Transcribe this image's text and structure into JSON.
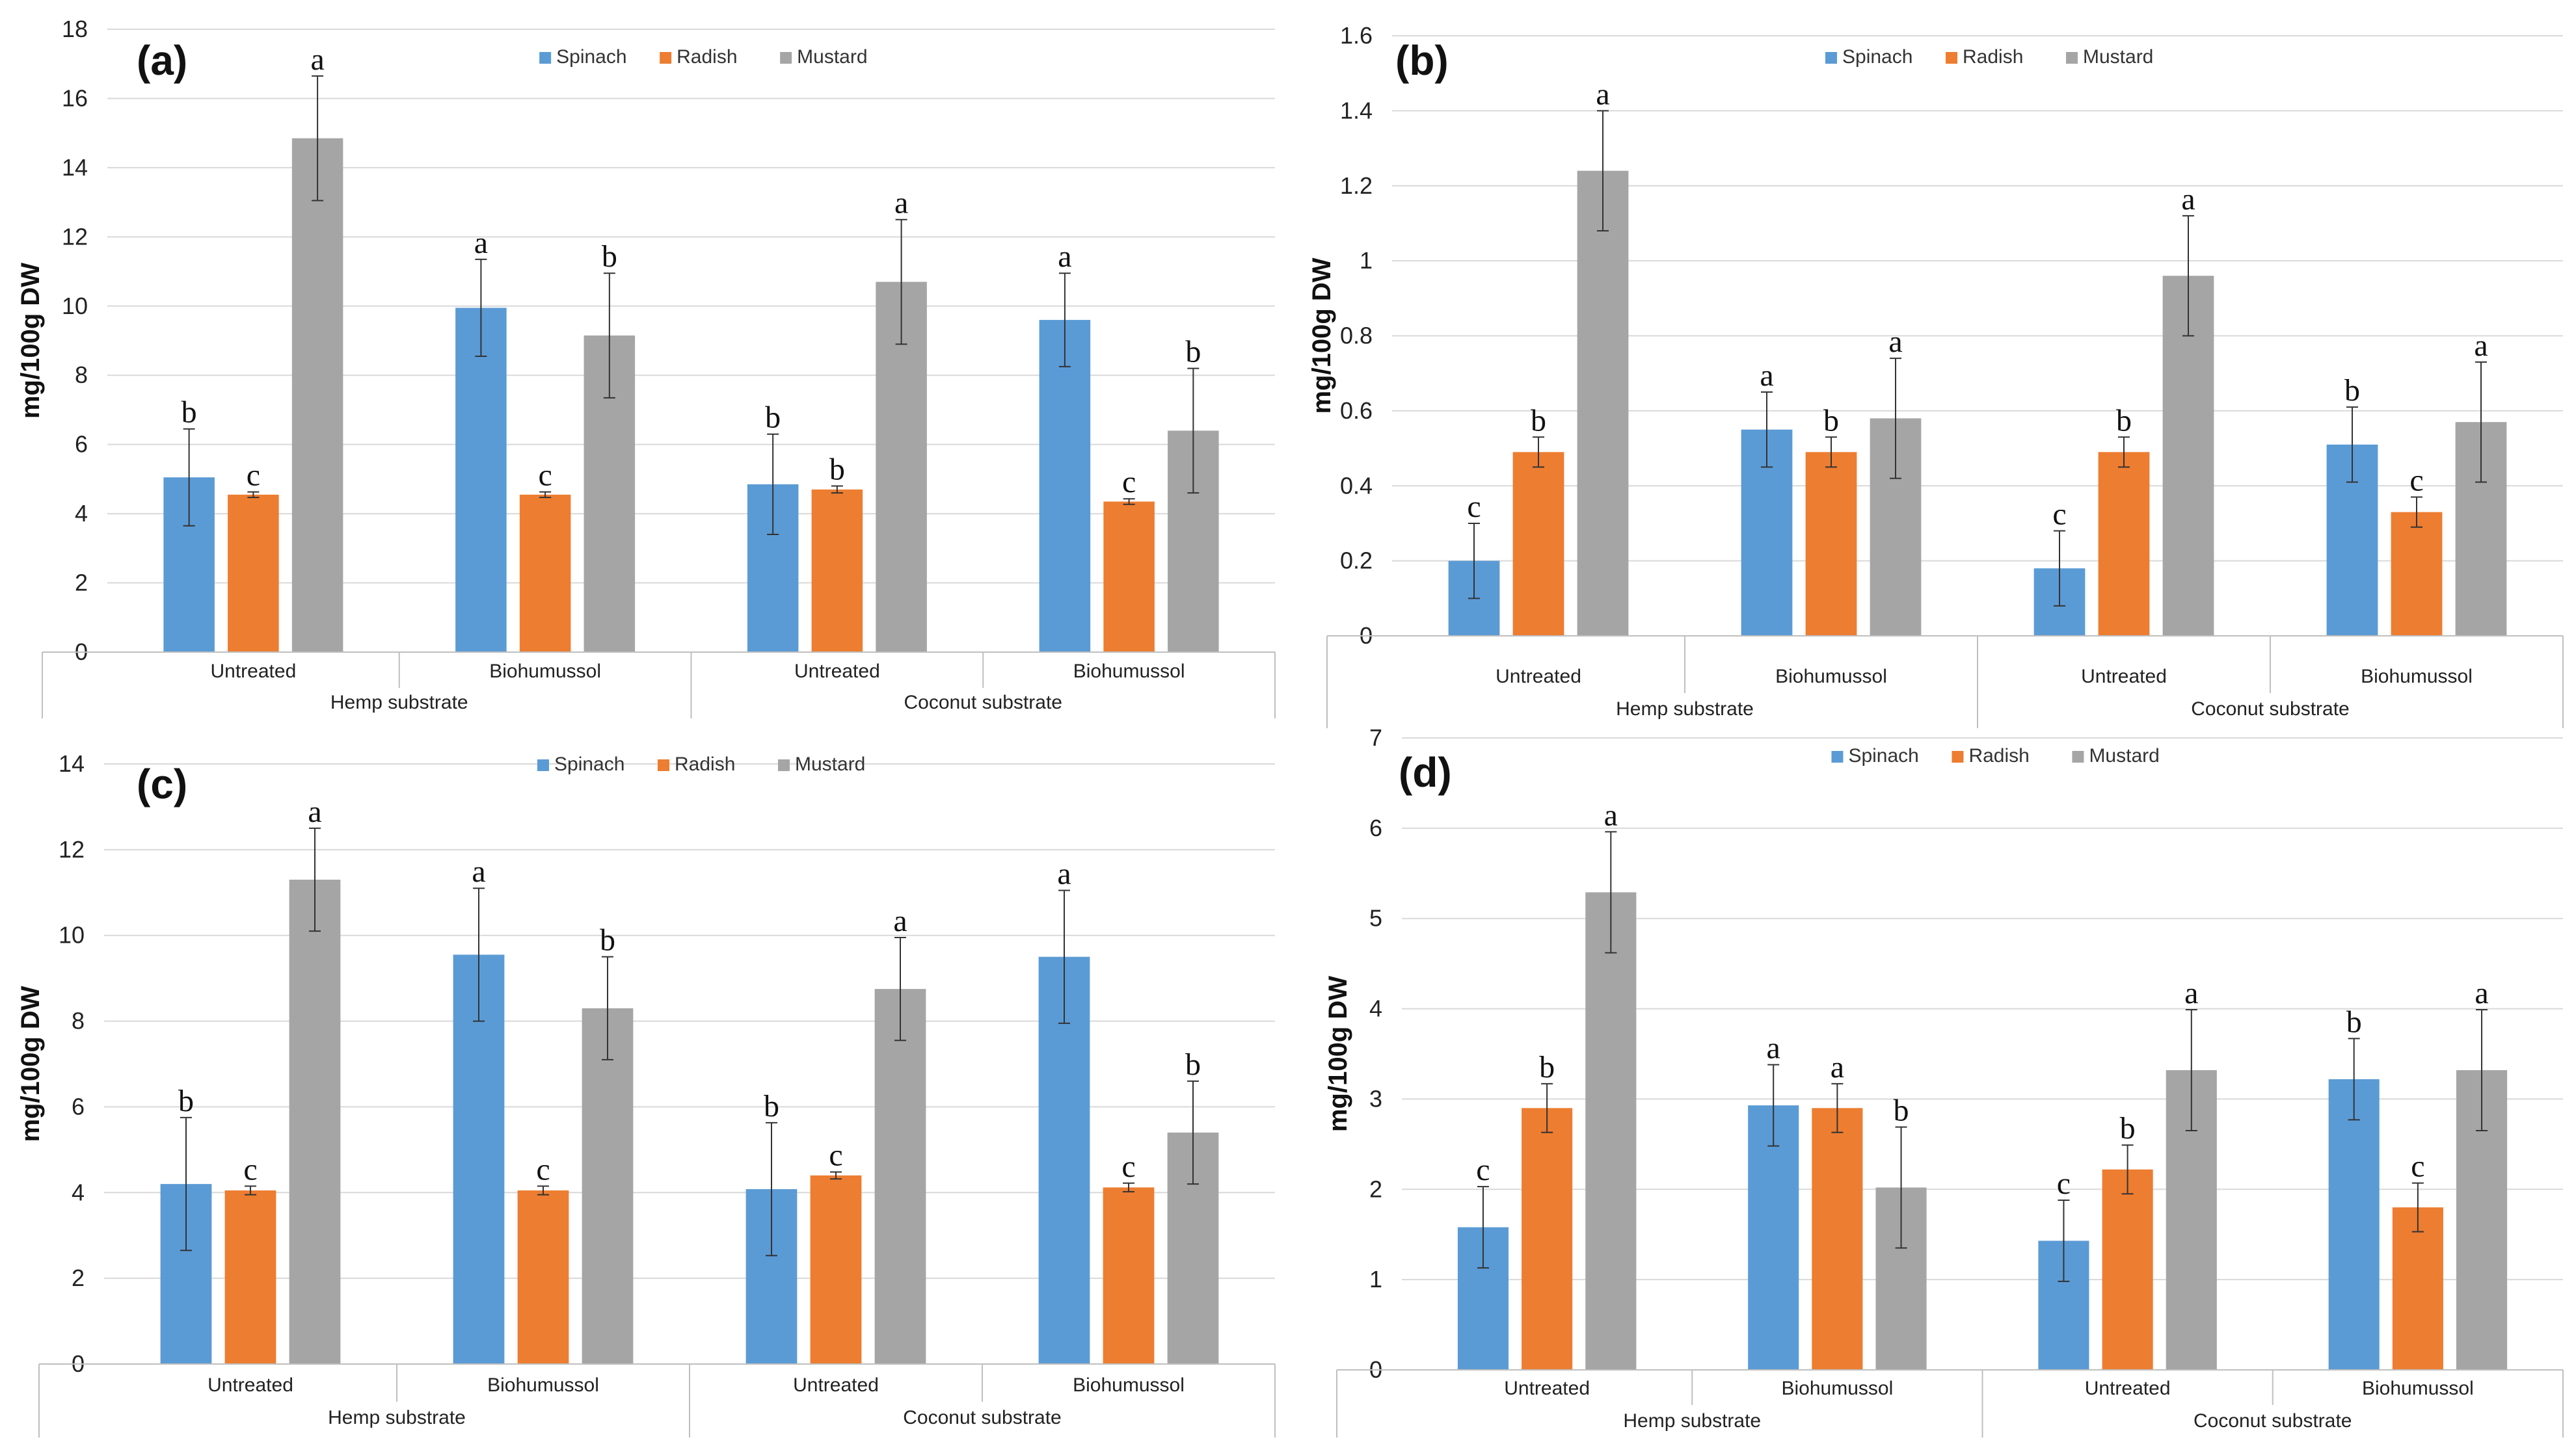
{
  "series_names": [
    "Spinach",
    "Radish",
    "Mustard"
  ],
  "colors": {
    "Spinach": "#5b9bd5",
    "Radish": "#ed7d31",
    "Mustard": "#a5a5a5",
    "error_bar": "#333333"
  },
  "chart_data": [
    {
      "type": "bar",
      "panel": "(a)",
      "ylabel": "mg/100g DW",
      "ylim": [
        0,
        18
      ],
      "yticks": [
        "0",
        "2",
        "4",
        "6",
        "8",
        "10",
        "12",
        "14",
        "16",
        "18"
      ],
      "groups": [
        {
          "outer": "Hemp substrate",
          "inner": [
            "Untreated",
            "Biohumussol"
          ]
        },
        {
          "outer": "Coconut substrate",
          "inner": [
            "Untreated",
            "Biohumussol"
          ]
        }
      ],
      "categories": [
        "Hemp substrate / Untreated",
        "Hemp substrate / Biohumussol",
        "Coconut substrate / Untreated",
        "Coconut substrate / Biohumussol"
      ],
      "series": [
        {
          "name": "Spinach",
          "values": [
            5.05,
            9.95,
            4.85,
            9.6
          ],
          "errors": [
            1.4,
            1.4,
            1.45,
            1.35
          ],
          "letters": [
            "b",
            "a",
            "b",
            "a"
          ]
        },
        {
          "name": "Radish",
          "values": [
            4.55,
            4.55,
            4.7,
            4.35
          ],
          "errors": [
            0.08,
            0.08,
            0.1,
            0.08
          ],
          "letters": [
            "c",
            "c",
            "b",
            "c"
          ]
        },
        {
          "name": "Mustard",
          "values": [
            14.85,
            9.15,
            10.7,
            6.4
          ],
          "errors": [
            1.8,
            1.8,
            1.8,
            1.8
          ],
          "letters": [
            "a",
            "b",
            "a",
            "b"
          ]
        }
      ],
      "legend_position": "top-center"
    },
    {
      "type": "bar",
      "panel": "(b)",
      "ylabel": "mg/100g DW",
      "ylim": [
        0,
        1.6
      ],
      "yticks": [
        "0",
        "0.2",
        "0.4",
        "0.6",
        "0.8",
        "1",
        "1.2",
        "1.4",
        "1.6"
      ],
      "groups": [
        {
          "outer": "Hemp substrate",
          "inner": [
            "Untreated",
            "Biohumussol"
          ]
        },
        {
          "outer": "Coconut substrate",
          "inner": [
            "Untreated",
            "Biohumussol"
          ]
        }
      ],
      "categories": [
        "Hemp substrate / Untreated",
        "Hemp substrate / Biohumussol",
        "Coconut substrate / Untreated",
        "Coconut substrate / Biohumussol"
      ],
      "series": [
        {
          "name": "Spinach",
          "values": [
            0.2,
            0.55,
            0.18,
            0.51
          ],
          "errors": [
            0.1,
            0.1,
            0.1,
            0.1
          ],
          "letters": [
            "c",
            "a",
            "c",
            "b"
          ]
        },
        {
          "name": "Radish",
          "values": [
            0.49,
            0.49,
            0.49,
            0.33
          ],
          "errors": [
            0.04,
            0.04,
            0.04,
            0.04
          ],
          "letters": [
            "b",
            "b",
            "b",
            "c"
          ]
        },
        {
          "name": "Mustard",
          "values": [
            1.24,
            0.58,
            0.96,
            0.57
          ],
          "errors": [
            0.16,
            0.16,
            0.16,
            0.16
          ],
          "letters": [
            "a",
            "a",
            "a",
            "a"
          ]
        }
      ],
      "legend_position": "top-center"
    },
    {
      "type": "bar",
      "panel": "(c)",
      "ylabel": "mg/100g DW",
      "ylim": [
        0,
        14
      ],
      "yticks": [
        "0",
        "2",
        "4",
        "6",
        "8",
        "10",
        "12",
        "14"
      ],
      "groups": [
        {
          "outer": "Hemp substrate",
          "inner": [
            "Untreated",
            "Biohumussol"
          ]
        },
        {
          "outer": "Coconut substrate",
          "inner": [
            "Untreated",
            "Biohumussol"
          ]
        }
      ],
      "categories": [
        "Hemp substrate / Untreated",
        "Hemp substrate / Biohumussol",
        "Coconut substrate / Untreated",
        "Coconut substrate / Biohumussol"
      ],
      "series": [
        {
          "name": "Spinach",
          "values": [
            4.2,
            9.55,
            4.08,
            9.5
          ],
          "errors": [
            1.55,
            1.55,
            1.55,
            1.55
          ],
          "letters": [
            "b",
            "a",
            "b",
            "a"
          ]
        },
        {
          "name": "Radish",
          "values": [
            4.05,
            4.05,
            4.4,
            4.12
          ],
          "errors": [
            0.1,
            0.1,
            0.08,
            0.1
          ],
          "letters": [
            "c",
            "c",
            "c",
            "c"
          ]
        },
        {
          "name": "Mustard",
          "values": [
            11.3,
            8.3,
            8.75,
            5.4
          ],
          "errors": [
            1.2,
            1.2,
            1.2,
            1.2
          ],
          "letters": [
            "a",
            "b",
            "a",
            "b"
          ]
        }
      ],
      "legend_position": "top-center"
    },
    {
      "type": "bar",
      "panel": "(d)",
      "ylabel": "mg/100g DW",
      "ylim": [
        0,
        7
      ],
      "yticks": [
        "0",
        "1",
        "2",
        "3",
        "4",
        "5",
        "6",
        "7"
      ],
      "groups": [
        {
          "outer": "Hemp substrate",
          "inner": [
            "Untreated",
            "Biohumussol"
          ]
        },
        {
          "outer": "Coconut substrate",
          "inner": [
            "Untreated",
            "Biohumussol"
          ]
        }
      ],
      "categories": [
        "Hemp substrate / Untreated",
        "Hemp substrate / Biohumussol",
        "Coconut substrate / Untreated",
        "Coconut substrate / Biohumussol"
      ],
      "series": [
        {
          "name": "Spinach",
          "values": [
            1.58,
            2.93,
            1.43,
            3.22
          ],
          "errors": [
            0.45,
            0.45,
            0.45,
            0.45
          ],
          "letters": [
            "c",
            "a",
            "c",
            "b"
          ]
        },
        {
          "name": "Radish",
          "values": [
            2.9,
            2.9,
            2.22,
            1.8
          ],
          "errors": [
            0.27,
            0.27,
            0.27,
            0.27
          ],
          "letters": [
            "b",
            "a",
            "b",
            "c"
          ]
        },
        {
          "name": "Mustard",
          "values": [
            5.29,
            2.02,
            3.32,
            3.32
          ],
          "errors": [
            0.67,
            0.67,
            0.67,
            0.67
          ],
          "letters": [
            "a",
            "b",
            "a",
            "a"
          ]
        }
      ],
      "legend_position": "top-center"
    }
  ]
}
